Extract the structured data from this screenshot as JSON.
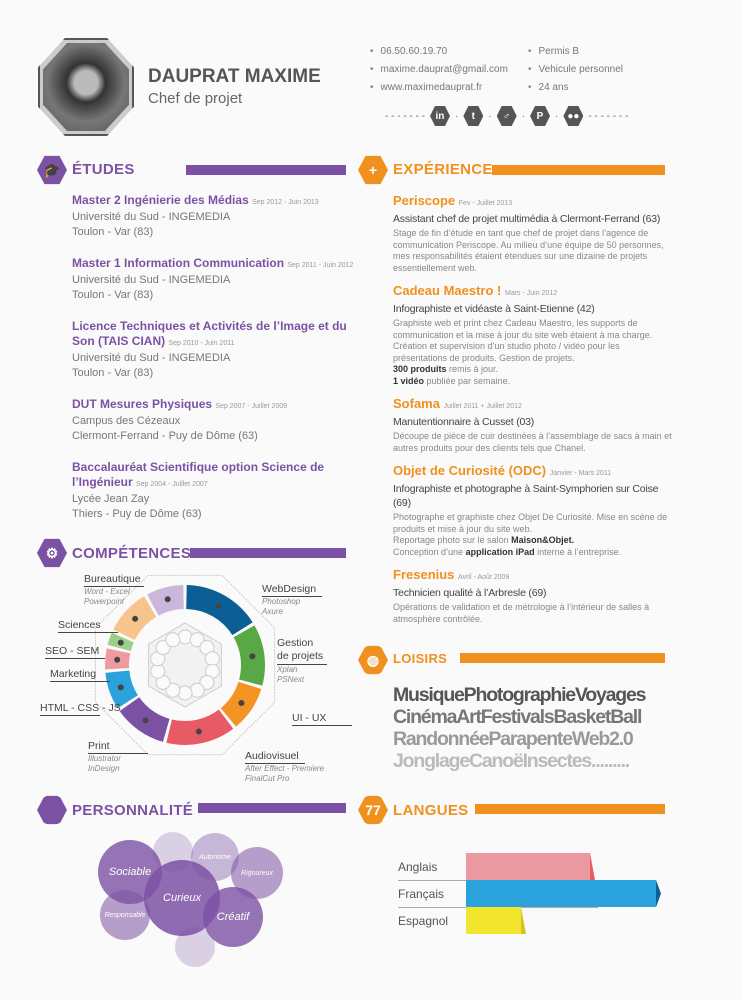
{
  "header": {
    "name": "DAUPRAT MAXIME",
    "role": "Chef de projet",
    "contact": [
      "06.50.60.19.70",
      "maxime.dauprat@gmail.com",
      "www.maximedauprat.fr"
    ],
    "info": [
      "Permis B",
      "Vehicule personnel",
      "24 ans"
    ],
    "social": [
      {
        "icon": "linkedin-icon",
        "glyph": "in"
      },
      {
        "icon": "twitter-icon",
        "glyph": "t"
      },
      {
        "icon": "viadeo-icon",
        "glyph": "♂"
      },
      {
        "icon": "pinterest-icon",
        "glyph": "P"
      },
      {
        "icon": "flickr-icon",
        "glyph": "●●"
      }
    ]
  },
  "colors": {
    "purple": "#7b52a3",
    "orange": "#f0901e"
  },
  "etudes": {
    "title": "ÉTUDES",
    "items": [
      {
        "title": "Master 2 Ingénierie des Médias",
        "date": "Sep 2012 - Juin 2013",
        "lines": [
          "Université du Sud - INGEMEDIA",
          "Toulon - Var (83)"
        ]
      },
      {
        "title": "Master 1 Information Communication",
        "date": "Sep 2011 - Juin 2012",
        "lines": [
          "Université du Sud - INGEMEDIA",
          "Toulon - Var (83)"
        ]
      },
      {
        "title": "Licence Techniques et Activités de l’Image et du Son (TAIS CIAN)",
        "date": "Sep 2010 - Juin 2011",
        "lines": [
          "Université du Sud - INGEMEDIA",
          "Toulon - Var (83)"
        ]
      },
      {
        "title": "DUT Mesures Physiques",
        "date": "Sep 2007 - Juillet 2009",
        "lines": [
          "Campus des Cézeaux",
          "Clermont-Ferrand - Puy de Dôme (63)"
        ]
      },
      {
        "title": "Baccalauréat Scientifique option Science de l’Ingénieur",
        "date": "Sep 2004 - Juillet 2007",
        "lines": [
          "Lycée Jean Zay",
          "Thiers - Puy de Dôme (63)"
        ]
      }
    ]
  },
  "experience": {
    "title": "EXPÉRIENCE",
    "items": [
      {
        "company": "Periscope",
        "date": "Fev - Juillet 2013",
        "role": "Assistant chef de projet multimédia à Clermont-Ferrand (63)",
        "desc": "Stage de fin d’étude en tant que chef de projet dans l’agence de communication Periscope. Au milieu d’une équipe de 50 personnes, mes responsabilités étaient étendues sur une dizaine de projets essentiellement web."
      },
      {
        "company": "Cadeau Maestro !",
        "date": "Mars - Juin 2012",
        "role": "Infographiste et vidéaste à Saint-Etienne (42)",
        "desc": "Graphiste web et print chez Cadeau Maestro, les supports de communication et la mise à jour du site web étaient à ma charge. Création et supervision d’un studio photo / vidéo pour les présentations de produits. Gestion de projets.",
        "b1": "300 produits",
        "t1": " remis à jour.",
        "b2": "1 vidéo",
        "t2": " publiée par semaine."
      },
      {
        "company": "Sofama",
        "date": "Juillet 2011 + Juillet 2012",
        "role": "Manutentionnaire à Cusset (03)",
        "desc": "Découpe de pièce de cuir destinées à l’assemblage de sacs à main et autres produits pour des clients tels que Chanel."
      },
      {
        "company": "Objet de Curiosité (ODC)",
        "date": "Janvier - Mars 2011",
        "role": "Infographiste et photographe à Saint-Symphorien sur Coise (69)",
        "desc": "Photographe et graphiste chez Objet De Curiosité. Mise en scène de produits et mise à jour du site web.",
        "t1": "Reportage photo sur le salon ",
        "b1": "Maison&Objet.",
        "t2": "Conception d’une ",
        "b2": "application iPad",
        "t3": " interne à l’entreprise."
      },
      {
        "company": "Fresenius",
        "date": "Avril - Août 2009",
        "role": "Technicien qualité à l’Arbresle (69)",
        "desc": "Opérations de validation et de métrologie à l’intérieur de salles à atmosphère contrôlée."
      }
    ]
  },
  "competences": {
    "title": "COMPÉTENCES",
    "skills": [
      {
        "label": "WebDesign",
        "sub": [
          "Photoshop",
          "Axure"
        ],
        "color": "#0b5f95",
        "weight": 10
      },
      {
        "label": "Gestion de projets",
        "sub": [
          "Xplan",
          "PSNext"
        ],
        "color": "#58a846",
        "weight": 8
      },
      {
        "label": "UI - UX",
        "sub": [],
        "color": "#f39323",
        "weight": 6
      },
      {
        "label": "Audiovisuel",
        "sub": [
          "After Effect - Premiere",
          "FinalCut Pro"
        ],
        "color": "#e95b64",
        "weight": 9
      },
      {
        "label": "Print",
        "sub": [
          "Illustrator",
          "InDesign"
        ],
        "color": "#7b52a3",
        "weight": 7
      },
      {
        "label": "HTML - CSS - JS",
        "sub": [],
        "color": "#2aa3dc",
        "weight": 5
      },
      {
        "label": "Marketing",
        "sub": [],
        "color": "#ee9aa0",
        "weight": 3
      },
      {
        "label": "SEO - SEM",
        "sub": [],
        "color": "#9ccf87",
        "weight": 2
      },
      {
        "label": "Sciences",
        "sub": [],
        "color": "#f8c48e",
        "weight": 6
      },
      {
        "label": "Bureautique",
        "sub": [
          "Word - Excel",
          "Powerpoint"
        ],
        "color": "#cbb6dc",
        "weight": 5
      }
    ]
  },
  "personnalite": {
    "title": "PERSONNALITÉ",
    "traits": [
      "Sociable",
      "Curieux",
      "Créatif",
      "Responsable",
      "Rigoureux",
      "Autonome"
    ]
  },
  "loisirs": {
    "title": "LOISIRS",
    "lines": [
      "MusiquePhotographieVoyages",
      "CinémaArtFestivalsBasketBall",
      "RandonnéeParapenteWeb2.0",
      "JonglageCanoëInsectes........."
    ]
  },
  "langues": {
    "title": "LANGUES",
    "items": [
      {
        "label": "Anglais",
        "level": 0.65,
        "color": "#e9999f",
        "edge": "#e95b64"
      },
      {
        "label": "Français",
        "level": 1.0,
        "color": "#2aa3dc",
        "edge": "#0b5f95"
      },
      {
        "label": "Espagnol",
        "level": 0.29,
        "color": "#f2e52d",
        "edge": "#d6c41e"
      }
    ]
  }
}
